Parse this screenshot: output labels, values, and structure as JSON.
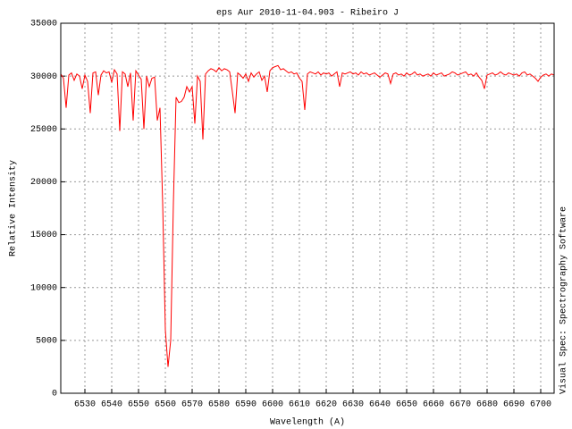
{
  "chart_data": {
    "type": "line",
    "title": "eps Aur 2010-11-04.903 - Ribeiro J",
    "xlabel": "Wavelength (A)",
    "ylabel": "Relative Intensity",
    "side_note": "Visual Spec: Spectrography Software",
    "color": "#ff0000",
    "grid": true,
    "xlim": [
      6521,
      6705
    ],
    "ylim": [
      0,
      35000
    ],
    "xticks": [
      6530,
      6540,
      6550,
      6560,
      6570,
      6580,
      6590,
      6600,
      6610,
      6620,
      6630,
      6640,
      6650,
      6660,
      6670,
      6680,
      6690,
      6700
    ],
    "yticks": [
      0,
      5000,
      10000,
      15000,
      20000,
      25000,
      30000,
      35000
    ],
    "x": [
      6521,
      6522,
      6523,
      6524,
      6525,
      6526,
      6527,
      6528,
      6529,
      6530,
      6531,
      6532,
      6533,
      6534,
      6535,
      6536,
      6537,
      6538,
      6539,
      6540,
      6541,
      6542,
      6543,
      6544,
      6545,
      6546,
      6547,
      6548,
      6549,
      6550,
      6551,
      6552,
      6553,
      6554,
      6555,
      6556,
      6557,
      6558,
      6559,
      6560,
      6561,
      6562,
      6563,
      6564,
      6565,
      6566,
      6567,
      6568,
      6569,
      6570,
      6571,
      6572,
      6573,
      6574,
      6575,
      6576,
      6577,
      6578,
      6579,
      6580,
      6581,
      6582,
      6583,
      6584,
      6585,
      6586,
      6587,
      6588,
      6589,
      6590,
      6591,
      6592,
      6593,
      6594,
      6595,
      6596,
      6597,
      6598,
      6599,
      6600,
      6601,
      6602,
      6603,
      6604,
      6605,
      6606,
      6607,
      6608,
      6609,
      6610,
      6611,
      6612,
      6613,
      6614,
      6615,
      6616,
      6617,
      6618,
      6619,
      6620,
      6621,
      6622,
      6623,
      6624,
      6625,
      6626,
      6627,
      6628,
      6629,
      6630,
      6631,
      6632,
      6633,
      6634,
      6635,
      6636,
      6637,
      6638,
      6639,
      6640,
      6641,
      6642,
      6643,
      6644,
      6645,
      6646,
      6647,
      6648,
      6649,
      6650,
      6651,
      6652,
      6653,
      6654,
      6655,
      6656,
      6657,
      6658,
      6659,
      6660,
      6661,
      6662,
      6663,
      6664,
      6665,
      6666,
      6667,
      6668,
      6669,
      6670,
      6671,
      6672,
      6673,
      6674,
      6675,
      6676,
      6677,
      6678,
      6679,
      6680,
      6681,
      6682,
      6683,
      6684,
      6685,
      6686,
      6687,
      6688,
      6689,
      6690,
      6691,
      6692,
      6693,
      6694,
      6695,
      6696,
      6697,
      6698,
      6699,
      6700,
      6701,
      6702,
      6703,
      6704,
      6705
    ],
    "values": [
      30200,
      29800,
      27000,
      30100,
      30300,
      29600,
      30200,
      30000,
      28800,
      30100,
      29500,
      26500,
      30300,
      30400,
      28200,
      30100,
      30500,
      30300,
      30400,
      29400,
      30600,
      30200,
      24800,
      30400,
      30200,
      29000,
      30300,
      25800,
      30500,
      30100,
      29700,
      25000,
      30000,
      29000,
      29800,
      29900,
      25800,
      27000,
      18000,
      6000,
      2500,
      5000,
      18000,
      28000,
      27500,
      27600,
      28000,
      29000,
      28500,
      29000,
      25500,
      30000,
      29500,
      24000,
      30200,
      30500,
      30700,
      30600,
      30400,
      30800,
      30500,
      30700,
      30600,
      30400,
      28500,
      26500,
      30300,
      30100,
      29800,
      30200,
      29500,
      30300,
      29900,
      30200,
      30400,
      29600,
      30000,
      28500,
      30500,
      30800,
      30900,
      31000,
      30600,
      30700,
      30500,
      30300,
      30400,
      30200,
      30300,
      29800,
      29500,
      26800,
      30200,
      30400,
      30300,
      30200,
      30400,
      30100,
      30300,
      30200,
      30300,
      30000,
      30200,
      30400,
      29000,
      30300,
      30200,
      30300,
      30400,
      30200,
      30300,
      30100,
      30400,
      30200,
      30300,
      30100,
      30200,
      30300,
      30100,
      29900,
      30100,
      30300,
      30200,
      29300,
      30200,
      30300,
      30100,
      30200,
      30000,
      30300,
      30100,
      30200,
      30400,
      30100,
      30200,
      30000,
      30100,
      30200,
      30000,
      30300,
      30100,
      30200,
      30300,
      30000,
      30100,
      30200,
      30400,
      30300,
      30100,
      30200,
      30300,
      30400,
      30100,
      30200,
      30000,
      30300,
      29900,
      29600,
      28800,
      30100,
      30200,
      30300,
      30100,
      30200,
      30400,
      30200,
      30100,
      30300,
      30200,
      30100,
      30200,
      30000,
      30300,
      30400,
      30100,
      30200,
      30000,
      29800,
      29500,
      29900,
      30100,
      30200,
      30000,
      30200,
      30100
    ]
  }
}
